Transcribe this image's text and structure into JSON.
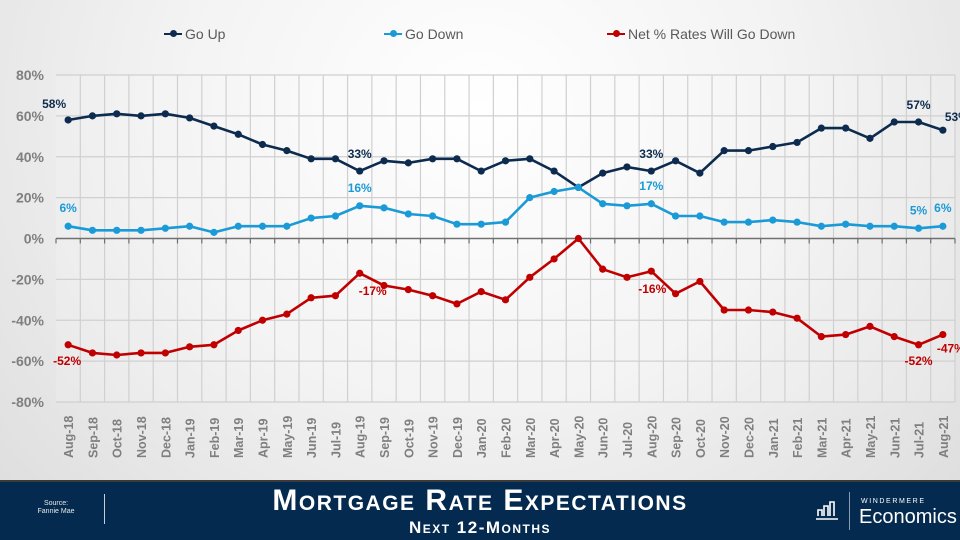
{
  "chart_data": {
    "type": "line",
    "title": "Mortgage Rate Expectations",
    "subtitle": "Next 12-Months",
    "xlabel": "",
    "ylabel": "",
    "ylim": [
      -80,
      80
    ],
    "yticks": [
      80,
      60,
      40,
      20,
      0,
      -20,
      -40,
      -60,
      -80
    ],
    "ytick_labels": [
      "80%",
      "60%",
      "40%",
      "20%",
      "0%",
      "-20%",
      "-40%",
      "-60%",
      "-80%"
    ],
    "grid": true,
    "legend_position": "top",
    "categories": [
      "Aug-18",
      "Sep-18",
      "Oct-18",
      "Nov-18",
      "Dec-18",
      "Jan-19",
      "Feb-19",
      "Mar-19",
      "Apr-19",
      "May-19",
      "Jun-19",
      "Jul-19",
      "Aug-19",
      "Sep-19",
      "Oct-19",
      "Nov-19",
      "Dec-19",
      "Jan-20",
      "Feb-20",
      "Mar-20",
      "Apr-20",
      "May-20",
      "Jun-20",
      "Jul-20",
      "Aug-20",
      "Sep-20",
      "Oct-20",
      "Nov-20",
      "Dec-20",
      "Jan-21",
      "Feb-21",
      "Mar-21",
      "Apr-21",
      "May-21",
      "Jun-21",
      "Jul-21",
      "Aug-21"
    ],
    "series": [
      {
        "name": "Go Up",
        "color": "#0d2b4e",
        "values": [
          58,
          60,
          61,
          60,
          61,
          59,
          55,
          51,
          46,
          43,
          39,
          39,
          33,
          38,
          37,
          39,
          39,
          33,
          38,
          39,
          33,
          25,
          32,
          35,
          33,
          38,
          32,
          43,
          43,
          45,
          47,
          54,
          54,
          49,
          57,
          57,
          53
        ],
        "data_labels": [
          {
            "index": 0,
            "text": "58%"
          },
          {
            "index": 12,
            "text": "33%"
          },
          {
            "index": 24,
            "text": "33%"
          },
          {
            "index": 35,
            "text": "57%"
          },
          {
            "index": 36,
            "text": "53%"
          }
        ]
      },
      {
        "name": "Go Down",
        "color": "#1a9ad6",
        "values": [
          6,
          4,
          4,
          4,
          5,
          6,
          3,
          6,
          6,
          6,
          10,
          11,
          16,
          15,
          12,
          11,
          7,
          7,
          8,
          20,
          23,
          25,
          17,
          16,
          17,
          11,
          11,
          8,
          8,
          9,
          8,
          6,
          7,
          6,
          6,
          5,
          6
        ],
        "data_labels": [
          {
            "index": 0,
            "text": "6%"
          },
          {
            "index": 12,
            "text": "16%"
          },
          {
            "index": 24,
            "text": "17%"
          },
          {
            "index": 35,
            "text": "5%"
          },
          {
            "index": 36,
            "text": "6%"
          }
        ]
      },
      {
        "name": "Net % Rates Will Go Down",
        "color": "#c00000",
        "values": [
          -52,
          -56,
          -57,
          -56,
          -56,
          -53,
          -52,
          -45,
          -40,
          -37,
          -29,
          -28,
          -17,
          -23,
          -25,
          -28,
          -32,
          -26,
          -30,
          -19,
          -10,
          0,
          -15,
          -19,
          -16,
          -27,
          -21,
          -35,
          -35,
          -36,
          -39,
          -48,
          -47,
          -43,
          -48,
          -52,
          -47
        ],
        "data_labels": [
          {
            "index": 0,
            "text": "-52%"
          },
          {
            "index": 12,
            "text": "-17%"
          },
          {
            "index": 24,
            "text": "-16%"
          },
          {
            "index": 35,
            "text": "-52%"
          },
          {
            "index": 36,
            "text": "-47%"
          }
        ]
      }
    ]
  },
  "legend": [
    {
      "label": "Go Up",
      "color": "#0d2b4e"
    },
    {
      "label": "Go Down",
      "color": "#1a9ad6"
    },
    {
      "label": "Net % Rates Will Go Down",
      "color": "#c00000"
    }
  ],
  "footer": {
    "source_label": "Source:",
    "source_name": "Fannie Mae",
    "title": "Mortgage Rate Expectations",
    "subtitle": "Next 12-Months",
    "brand_top": "WINDERMERE",
    "brand_main": "Economics",
    "background_color": "#052a4f"
  }
}
